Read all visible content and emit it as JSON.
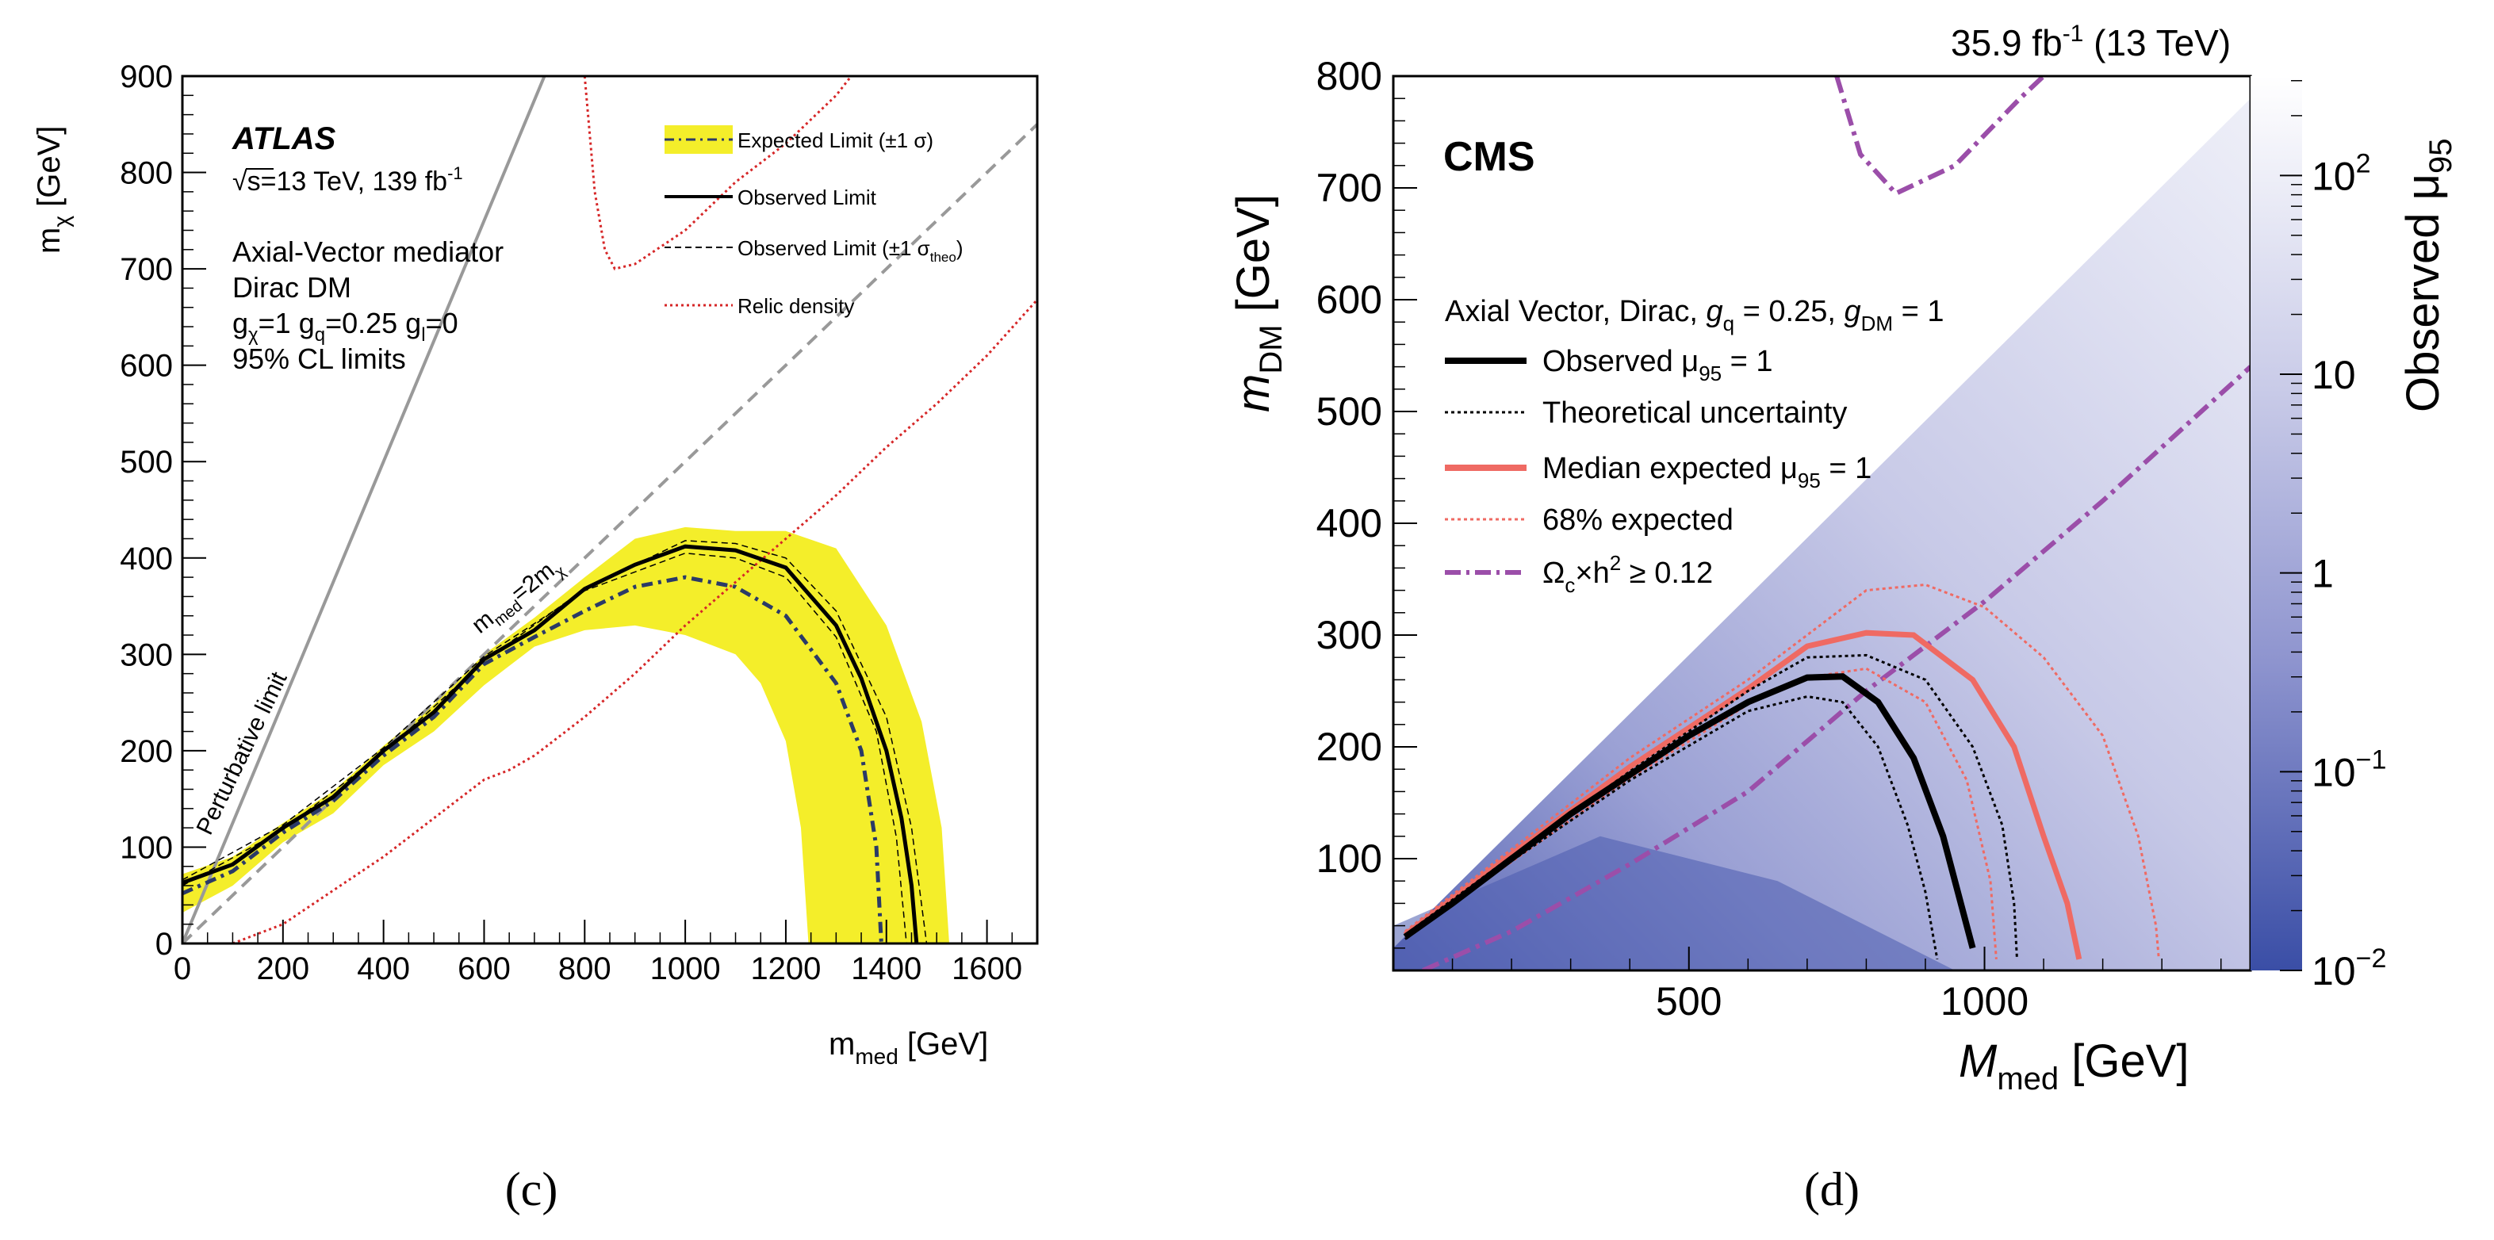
{
  "chart_data": [
    {
      "type": "line",
      "panel_label": "(c)",
      "experiment": "ATLAS",
      "energy_lumi": "√s=13 TeV, 139 fb",
      "energy_lumi_sup": "-1",
      "model_lines": [
        "Axial-Vector mediator",
        "Dirac DM"
      ],
      "couplings": {
        "gchi": "g",
        "gchi_sub": "χ",
        "gchi_val": "=1 g",
        "gq_sub": "q",
        "gq_val": "=0.25 g",
        "gl_sub": "l",
        "gl_val": "=0"
      },
      "cl_text": "95% CL limits",
      "xlabel": "m",
      "xlabel_sub": "med",
      "xlabel_unit": " [GeV]",
      "ylabel": "m",
      "ylabel_sub": "χ",
      "ylabel_unit": " [GeV]",
      "xlim": [
        0,
        1700
      ],
      "ylim": [
        0,
        900
      ],
      "x_ticks": [
        0,
        200,
        400,
        600,
        800,
        1000,
        1200,
        1400,
        1600
      ],
      "y_ticks": [
        0,
        100,
        200,
        300,
        400,
        500,
        600,
        700,
        800,
        900
      ],
      "legend": [
        {
          "label": "Expected Limit (±1 σ)"
        },
        {
          "label": "Observed Limit"
        },
        {
          "label": "Observed Limit (±1 σ",
          "sub": "theo",
          "tail": ")"
        },
        {
          "label": "Relic density"
        }
      ],
      "annotations": {
        "perturbative": "Perturbative limit",
        "diag": "m",
        "diag_sub": "med",
        "diag_mid": "=2m",
        "diag_sub2": "χ"
      },
      "colors": {
        "band": "#f4ee2a",
        "expected": "#2b3a67",
        "relic": "#d62728",
        "diag": "#999999"
      },
      "series": [
        {
          "name": "Observed Limit",
          "points": [
            [
              0,
              63
            ],
            [
              100,
              82
            ],
            [
              200,
              120
            ],
            [
              300,
              152
            ],
            [
              400,
              200
            ],
            [
              500,
              240
            ],
            [
              600,
              295
            ],
            [
              700,
              325
            ],
            [
              800,
              368
            ],
            [
              900,
              393
            ],
            [
              1000,
              412
            ],
            [
              1100,
              408
            ],
            [
              1200,
              390
            ],
            [
              1300,
              330
            ],
            [
              1350,
              275
            ],
            [
              1400,
              200
            ],
            [
              1430,
              130
            ],
            [
              1450,
              60
            ],
            [
              1460,
              0
            ]
          ]
        },
        {
          "name": "Expected Limit (±1 σ)",
          "points": [
            [
              0,
              52
            ],
            [
              100,
              75
            ],
            [
              200,
              115
            ],
            [
              300,
              148
            ],
            [
              400,
              195
            ],
            [
              500,
              235
            ],
            [
              600,
              290
            ],
            [
              700,
              318
            ],
            [
              800,
              345
            ],
            [
              900,
              370
            ],
            [
              1000,
              380
            ],
            [
              1100,
              370
            ],
            [
              1200,
              340
            ],
            [
              1300,
              270
            ],
            [
              1350,
              200
            ],
            [
              1380,
              100
            ],
            [
              1390,
              0
            ]
          ]
        },
        {
          "name": "Band upper",
          "points": [
            [
              0,
              72
            ],
            [
              100,
              90
            ],
            [
              200,
              125
            ],
            [
              300,
              158
            ],
            [
              400,
              205
            ],
            [
              500,
              248
            ],
            [
              600,
              300
            ],
            [
              700,
              338
            ],
            [
              800,
              380
            ],
            [
              900,
              420
            ],
            [
              1000,
              432
            ],
            [
              1100,
              428
            ],
            [
              1200,
              428
            ],
            [
              1300,
              410
            ],
            [
              1400,
              330
            ],
            [
              1470,
              230
            ],
            [
              1510,
              120
            ],
            [
              1525,
              0
            ]
          ]
        },
        {
          "name": "Band lower",
          "points": [
            [
              0,
              32
            ],
            [
              100,
              60
            ],
            [
              200,
              105
            ],
            [
              300,
              135
            ],
            [
              400,
              185
            ],
            [
              500,
              220
            ],
            [
              600,
              268
            ],
            [
              700,
              308
            ],
            [
              800,
              325
            ],
            [
              900,
              330
            ],
            [
              1000,
              320
            ],
            [
              1100,
              300
            ],
            [
              1150,
              270
            ],
            [
              1200,
              210
            ],
            [
              1230,
              120
            ],
            [
              1245,
              0
            ]
          ]
        },
        {
          "name": "Observed Limit (±1 σtheo) up",
          "points": [
            [
              0,
              60
            ],
            [
              200,
              118
            ],
            [
              400,
              198
            ],
            [
              600,
              293
            ],
            [
              800,
              368
            ],
            [
              1000,
              418
            ],
            [
              1100,
              415
            ],
            [
              1200,
              400
            ],
            [
              1300,
              345
            ],
            [
              1400,
              235
            ],
            [
              1450,
              120
            ],
            [
              1480,
              0
            ]
          ]
        },
        {
          "name": "Observed Limit (±1 σtheo) down",
          "points": [
            [
              0,
              66
            ],
            [
              200,
              123
            ],
            [
              400,
              203
            ],
            [
              600,
              298
            ],
            [
              800,
              366
            ],
            [
              1000,
              405
            ],
            [
              1100,
              400
            ],
            [
              1200,
              380
            ],
            [
              1300,
              318
            ],
            [
              1380,
              220
            ],
            [
              1420,
              110
            ],
            [
              1440,
              0
            ]
          ]
        },
        {
          "name": "Relic density lower",
          "points": [
            [
              100,
              0
            ],
            [
              200,
              20
            ],
            [
              300,
              55
            ],
            [
              400,
              90
            ],
            [
              500,
              130
            ],
            [
              600,
              170
            ],
            [
              650,
              180
            ],
            [
              700,
              195
            ],
            [
              800,
              235
            ],
            [
              900,
              280
            ],
            [
              1000,
              330
            ],
            [
              1100,
              375
            ],
            [
              1200,
              420
            ],
            [
              1300,
              465
            ],
            [
              1400,
              515
            ],
            [
              1500,
              560
            ],
            [
              1600,
              610
            ],
            [
              1700,
              668
            ]
          ]
        },
        {
          "name": "Relic density upper",
          "points": [
            [
              800,
              900
            ],
            [
              820,
              780
            ],
            [
              840,
              720
            ],
            [
              860,
              700
            ],
            [
              900,
              705
            ],
            [
              1000,
              740
            ],
            [
              1100,
              790
            ],
            [
              1200,
              830
            ],
            [
              1300,
              880
            ],
            [
              1330,
              900
            ]
          ]
        }
      ]
    },
    {
      "type": "heatmap",
      "panel_label": "(d)",
      "experiment": "CMS",
      "lumi": "35.9 fb",
      "lumi_sup": "-1",
      "lumi_tail": " (13 TeV)",
      "model_text": {
        "a": "Axial Vector, Dirac, ",
        "gq": "g",
        "gq_sub": "q",
        "gq_val": " = 0.25, ",
        "gdm": "g",
        "gdm_sub": "DM",
        "gdm_val": " = 1"
      },
      "xlabel": "M",
      "xlabel_sub": "med",
      "xlabel_unit": " [GeV]",
      "ylabel": "m",
      "ylabel_sub": "DM",
      "ylabel_unit": " [GeV]",
      "zlabel": "Observed μ",
      "zlabel_sub": "95",
      "xlim": [
        0,
        1450
      ],
      "ylim": [
        0,
        800
      ],
      "x_ticks": [
        500,
        1000
      ],
      "y_ticks": [
        100,
        200,
        300,
        400,
        500,
        600,
        700,
        800
      ],
      "z_ticks": [
        {
          "base": "10",
          "exp": "2"
        },
        {
          "base": "10",
          "exp": ""
        },
        {
          "base": "1",
          "exp": ""
        },
        {
          "base": "10",
          "exp": "−1"
        },
        {
          "base": "10",
          "exp": "−2"
        }
      ],
      "legend": [
        {
          "label": "Observed μ",
          "sub": "95",
          "tail": " = 1"
        },
        {
          "label": "Theoretical uncertainty"
        },
        {
          "label": "Median expected μ",
          "sub": "95",
          "tail": " = 1"
        },
        {
          "label": "68% expected"
        },
        {
          "label": "Ω",
          "sub": "c",
          "mid": "×h",
          "sup": "2",
          "tail": " ≥ 0.12"
        }
      ],
      "colors": {
        "observed": "#000000",
        "expected": "#ef6a63",
        "relic": "#9b4ea9",
        "heat_low": "#3a4ea6",
        "heat_high": "#ffffff"
      },
      "series": [
        {
          "name": "Observed μ95 = 1",
          "points": [
            [
              20,
              30
            ],
            [
              100,
              60
            ],
            [
              200,
              100
            ],
            [
              300,
              140
            ],
            [
              400,
              175
            ],
            [
              500,
              210
            ],
            [
              600,
              240
            ],
            [
              700,
              262
            ],
            [
              760,
              263
            ],
            [
              820,
              240
            ],
            [
              880,
              190
            ],
            [
              930,
              120
            ],
            [
              965,
              50
            ],
            [
              980,
              20
            ]
          ]
        },
        {
          "name": "Theoretical uncertainty outer",
          "points": [
            [
              20,
              32
            ],
            [
              200,
              102
            ],
            [
              400,
              178
            ],
            [
              600,
              250
            ],
            [
              700,
              280
            ],
            [
              800,
              282
            ],
            [
              900,
              260
            ],
            [
              980,
              200
            ],
            [
              1030,
              130
            ],
            [
              1050,
              60
            ],
            [
              1055,
              10
            ]
          ]
        },
        {
          "name": "Theoretical uncertainty inner",
          "points": [
            [
              20,
              28
            ],
            [
              200,
              98
            ],
            [
              400,
              170
            ],
            [
              600,
              232
            ],
            [
              700,
              245
            ],
            [
              760,
              240
            ],
            [
              820,
              200
            ],
            [
              870,
              130
            ],
            [
              900,
              70
            ],
            [
              920,
              10
            ]
          ]
        },
        {
          "name": "Median expected μ95 = 1",
          "points": [
            [
              20,
              32
            ],
            [
              200,
              104
            ],
            [
              400,
              182
            ],
            [
              600,
              252
            ],
            [
              700,
              290
            ],
            [
              800,
              302
            ],
            [
              880,
              300
            ],
            [
              980,
              260
            ],
            [
              1050,
              200
            ],
            [
              1100,
              120
            ],
            [
              1140,
              60
            ],
            [
              1160,
              10
            ]
          ]
        },
        {
          "name": "68% expected outer",
          "points": [
            [
              20,
              35
            ],
            [
              400,
              190
            ],
            [
              600,
              260
            ],
            [
              800,
              340
            ],
            [
              900,
              345
            ],
            [
              1000,
              325
            ],
            [
              1100,
              280
            ],
            [
              1200,
              210
            ],
            [
              1260,
              120
            ],
            [
              1290,
              40
            ],
            [
              1295,
              10
            ]
          ]
        },
        {
          "name": "68% expected inner",
          "points": [
            [
              20,
              30
            ],
            [
              400,
              172
            ],
            [
              600,
              238
            ],
            [
              700,
              262
            ],
            [
              800,
              270
            ],
            [
              900,
              240
            ],
            [
              970,
              170
            ],
            [
              1010,
              80
            ],
            [
              1020,
              10
            ]
          ]
        },
        {
          "name": "Relic lower",
          "points": [
            [
              50,
              0
            ],
            [
              200,
              35
            ],
            [
              400,
              95
            ],
            [
              600,
              160
            ],
            [
              800,
              250
            ],
            [
              1000,
              330
            ],
            [
              1200,
              420
            ],
            [
              1450,
              540
            ]
          ]
        },
        {
          "name": "Relic upper",
          "points": [
            [
              750,
              800
            ],
            [
              790,
              730
            ],
            [
              850,
              695
            ],
            [
              950,
              720
            ],
            [
              1060,
              780
            ],
            [
              1100,
              800
            ]
          ]
        }
      ]
    }
  ]
}
